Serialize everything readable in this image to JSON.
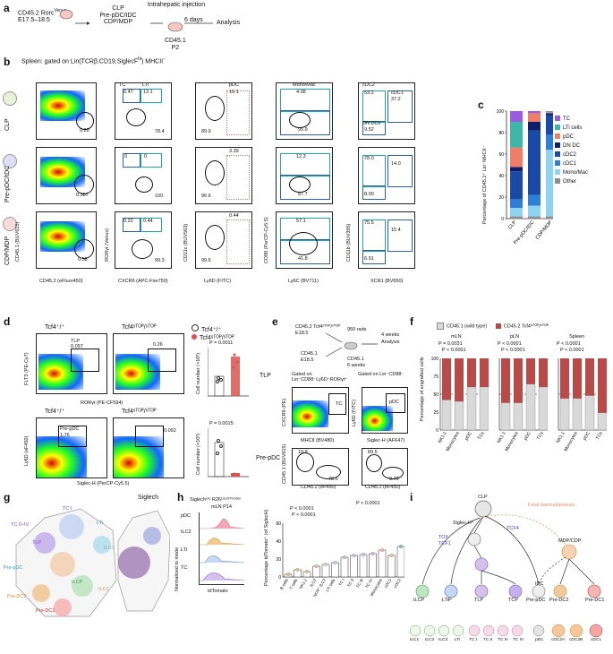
{
  "panels": {
    "a": "a",
    "b": "b",
    "c": "c",
    "d": "d",
    "e": "e",
    "f": "f",
    "g": "g",
    "h": "h",
    "i": "i"
  },
  "a": {
    "donor": "CD45.2 Rorc",
    "donor_sup": "Venus",
    "donor_age": "E17.5–18.5",
    "sorted": [
      "CLP",
      "Pre-pDC/tDC",
      "CDP/MDP"
    ],
    "injection": "Intrahepatic injection",
    "days": "6 days",
    "recipient": [
      "CD45.1",
      "P2"
    ],
    "analysis": "Analysis"
  },
  "b": {
    "title": "Spleen: gated on Lin(TCRβ,CD19,SiglecF",
    "title_sup": "hi",
    "title_end": ") MHCII",
    "title_end_sup": "−",
    "rows": [
      "CLP",
      "Pre-pDC/tDC",
      "CDP/MDP"
    ],
    "col1_x": "CD45.2 (eFluor450)",
    "col1_y": "CD45.1 (BUV615)",
    "col2_x": "CXCR6 (APC-Fire750)",
    "col2_y": "RORγt (Venus)",
    "col3_x": "Ly6D (FITC)",
    "col3_y": "CD11c (BUV563)",
    "col4_x": "Ly6C (BV711)",
    "col4_y": "CD88 (PerCP-Cy5.5)",
    "col5_x": "XCR1 (BV650)",
    "col5_y": "CD11b (BUV395)",
    "gates_row1": {
      "p1": "0.20",
      "tc": "TC",
      "lti": "LTi",
      "tc_v": "6.47",
      "lti_v": "13.1",
      "p2": "78.4",
      "pdc": "pDC",
      "pdc_v": "10.1",
      "p3": "89.9",
      "mono": "Mono/Mac",
      "mono_v": "4.08",
      "p4": "95.9",
      "cdc2": "cDC2",
      "cdc2_v": "53.2",
      "cdc1": "cDC1",
      "cdc1_v": "37.2",
      "dn": "DN DCs",
      "dn_v": "9.52"
    },
    "gates_row2": {
      "p1": "0.387",
      "tc_v": "0",
      "lti_v": "0",
      "p2": "100",
      "pdc_v": "3.39",
      "p3": "96.6",
      "mono_v": "12.3",
      "p4": "87.7",
      "cdc2_v": "78.0",
      "cdc1_v": "14.0",
      "dn_v": "8.00"
    },
    "gates_row3": {
      "p1": "0.58",
      "tc_v": "0.22",
      "lti_v": "0.44",
      "p2": "99.3",
      "pdc_v": "0.44",
      "p3": "99.6",
      "mono_v": "57.1",
      "p4": "41.8",
      "cdc2_v": "75.5",
      "cdc1_v": "15.4",
      "dn_v": "6.91"
    },
    "ticks_y": [
      "10⁶",
      "10⁵",
      "10⁴",
      "10³",
      "0",
      "−10³"
    ],
    "ticks_x": [
      "−10⁴",
      "0",
      "10⁴",
      "10⁵",
      "10⁶"
    ],
    "ticks_x2": [
      "−10³",
      "0",
      "10³",
      "10⁴",
      "10⁵"
    ]
  },
  "c": {
    "ylabel": "Percentage of CD45.1⁺ Lin⁻MHCII⁻",
    "categories": [
      "CLP",
      "Pre-pDC/tDC",
      "CDP/MDP"
    ],
    "ticks": [
      "100",
      "80",
      "60",
      "40",
      "20",
      "0"
    ]
  },
  "chart_data": {
    "type": "bar",
    "categories": [
      "CLP",
      "Pre-pDC/tDC",
      "CDP/MDP"
    ],
    "ylabel": "Percentage of CD45.1⁺ Lin⁻MHCII⁻",
    "ylim": [
      0,
      100
    ],
    "stacked": true,
    "series": [
      {
        "name": "Other",
        "color": "#8c8c8c",
        "values": [
          2,
          2,
          2
        ]
      },
      {
        "name": "Mono/Mac",
        "color": "#8fd3f2",
        "values": [
          8,
          10,
          62
        ]
      },
      {
        "name": "cDC1",
        "color": "#2f7fd8",
        "values": [
          8,
          10,
          14
        ]
      },
      {
        "name": "cDC2",
        "color": "#1b4aa6",
        "values": [
          26,
          60,
          18
        ]
      },
      {
        "name": "DN DC",
        "color": "#0e1e6b",
        "values": [
          4,
          8,
          2
        ]
      },
      {
        "name": "pDC",
        "color": "#f07c6a",
        "values": [
          18,
          8,
          1
        ]
      },
      {
        "name": "LTi cells",
        "color": "#3fb5a8",
        "values": [
          24,
          0,
          0.5
        ]
      },
      {
        "name": "TC",
        "color": "#9b5de0",
        "values": [
          10,
          2,
          0.5
        ]
      }
    ]
  },
  "d": {
    "legend": [
      "Tcf4⁺/⁺",
      "Tcf4ˢᵀᴼᴾ/ˢᵀᴼᴾ"
    ],
    "top_left_title": "Tcf4⁺/⁺",
    "top_right_title": "Tcf4ˢᵀᴼᴾ/ˢᵀᴼᴾ",
    "tlp": "TLP",
    "tlp_v1": "0.097",
    "tlp_v2": "0.26",
    "top_y": "FLT3 (PE-Cy7)",
    "top_x": "RORγt (PE-CF594)",
    "bottom_y": "Ly6D (eF450)",
    "bottom_x": "Siglec-H (PerCP-Cy5.5)",
    "pre_pdc": "Pre-pDC",
    "pre_pdc_v1": "1.76",
    "pre_pdc_v2": "0.092",
    "p_top": "P = 0.0011",
    "p_bottom": "P = 0.0015",
    "cell_number": "Cell number (×10³)",
    "tlp_label": "TLP",
    "prepdc_label": "Pre-pDC"
  },
  "e": {
    "donor1": "CD45.2 Tcf4ˢᵀᴼᴾ/ˢᵀᴼᴾ",
    "donor1_age": "E18.5",
    "donor2": "CD45.1",
    "donor2_age": "E18.5",
    "rads": "950 rads",
    "recipient": "CD45.1",
    "weeks6": "6 weeks",
    "weeks4": "4 weeks",
    "analysis": "Analysis",
    "gate_left": "Gated on Lin⁻CD88⁻Ly6D⁻RORγt⁺",
    "gate_right": "Gated on Lin⁻CD88⁻",
    "tc": "TC",
    "pdc": "pDC",
    "left_y": "CXCR6 (PE)",
    "left_x": "MHCII (BV480)",
    "right_y": "Ly6D (FITC)",
    "right_x": "Siglec-H (AF647)",
    "low_y": "CD45.1 (BUV615)",
    "low_x": "CD45.2 (eF450)",
    "v1": "19.8",
    "v2": "78.6",
    "v3": "89.5",
    "v4": "9.70"
  },
  "f": {
    "legend": [
      "CD45.1 (wild type)",
      "CD45.2 Tcf4ˢᵀᴼᴾ/ˢᵀᴼᴾ"
    ],
    "ylabel": "Percentage of engrafted cells",
    "groups": [
      "mLN",
      "pLN",
      "Spleen"
    ],
    "cats": [
      "NK1.1",
      "Monocytes",
      "pDC",
      "TCs"
    ],
    "p_mln": [
      "P = 0.0031",
      "P < 0.0001"
    ],
    "p_pln": [
      "P < 0.0001",
      "P < 0.0001"
    ],
    "p_spl": [
      "P < 0.0001",
      "P < 0.0001"
    ],
    "ticks": [
      "100",
      "75",
      "50",
      "25",
      "0"
    ]
  },
  "g": {
    "title_right": "Siglech",
    "labels": [
      "TC I",
      "TC II–IV",
      "LTi",
      "TLP",
      "ILC1",
      "Pre-pDC",
      "ILCP",
      "ILC2",
      "Pre-DC2",
      "Pre-DC1"
    ]
  },
  "h": {
    "title": "Siglechᶜʳᵉ R26ᴸˢᴸᵗᵈᵀᵒᵐᵃᵗᵒ",
    "subtitle": "mLN P14",
    "rows": [
      "pDC",
      "ILC2",
      "LTi",
      "TC"
    ],
    "xlab": "tdTomato",
    "ylab": "Normalized to mode",
    "bar_ylab": "Percentage tdTomato⁺ (of SiglecH)",
    "pvals": [
      "P < 0.0001",
      "P < 0.0001",
      "P < 0.0001"
    ],
    "cats": [
      "B cells",
      "T cells",
      "NK1.1",
      "ILC2",
      "NCR⁺ ILC3",
      "LTi cells",
      "TC I",
      "TC II",
      "TC III",
      "TC IV",
      "Monocytes",
      "cDC1",
      "cDC2"
    ],
    "ticks": [
      "60",
      "40",
      "20",
      "0"
    ]
  },
  "i": {
    "clp": "CLP",
    "siglec": "Siglec-H⁺",
    "tox": "TOX",
    "tcf1": "TCF1",
    "tcf4": "TCF4",
    "fetal": "Fetal haematopoiesis",
    "mdp": "MDP/CDP",
    "nodes": [
      "ILCP",
      "LTiP",
      "TLP",
      "TCP",
      "Pre-pDC",
      "tDC",
      "Pre-DC2",
      "Pre-DC1"
    ],
    "leaves": [
      "ILC1",
      "ILC2",
      "ILC3",
      "LTi",
      "TC I",
      "TC II",
      "TC III",
      "TC IV",
      "pDC",
      "cDC2A",
      "cDC2B",
      "cDC1"
    ]
  },
  "colors": {
    "tc": "#9b5de0",
    "lti": "#3fb5a8",
    "pdc": "#f07c6a",
    "dndc": "#0e1e6b",
    "cdc2": "#1b4aa6",
    "cdc1": "#2f7fd8",
    "mono": "#8fd3f2",
    "other": "#8c8c8c",
    "ko_red": "#b84a4a",
    "wt_grey": "#d9d9d9"
  }
}
